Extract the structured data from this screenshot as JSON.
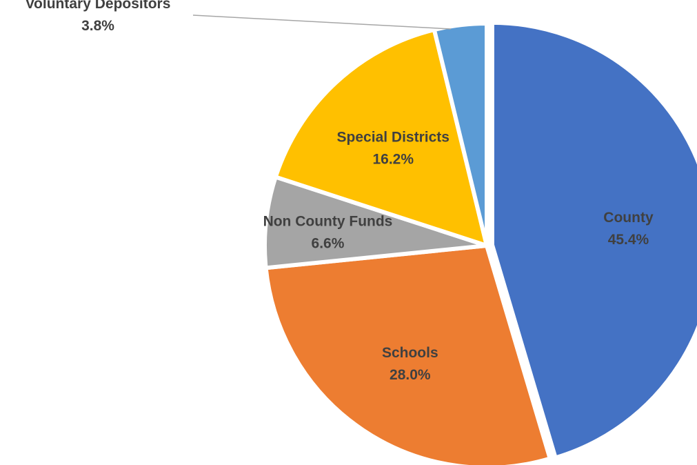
{
  "chart_data": {
    "type": "pie",
    "title": "",
    "slices": [
      {
        "name": "County",
        "value": 45.4,
        "label": "45.4%",
        "color": "#4472C4"
      },
      {
        "name": "Schools",
        "value": 28.0,
        "label": "28.0%",
        "color": "#ED7D31"
      },
      {
        "name": "Non County Funds",
        "value": 6.6,
        "label": "6.6%",
        "color": "#A5A5A5"
      },
      {
        "name": "Special Districts",
        "value": 16.2,
        "label": "16.2%",
        "color": "#FFC000"
      },
      {
        "name": "Voluntary Depositors",
        "value": 3.8,
        "label": "3.8%",
        "color": "#5B9BD5"
      }
    ],
    "start_angle": "12 o'clock",
    "direction": "clockwise",
    "legend": "none",
    "label_color": "#404040"
  }
}
